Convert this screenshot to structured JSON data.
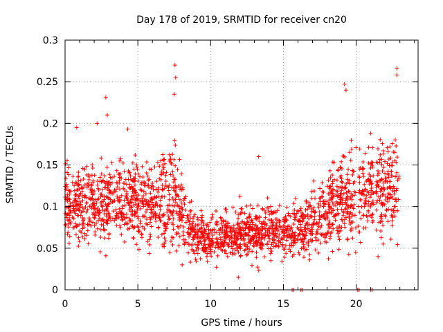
{
  "chart_data": {
    "type": "scatter",
    "title": "Day 178 of 2019, SRMTID for receiver cn20",
    "xlabel": "GPS time / hours",
    "ylabel": "SRMTID / TECUs",
    "xlim": [
      0,
      24.25
    ],
    "ylim": [
      0,
      0.3
    ],
    "x_ticks": [
      0,
      5,
      10,
      15,
      20
    ],
    "y_ticks": [
      0,
      0.05,
      0.1,
      0.15,
      0.2,
      0.25,
      0.3
    ],
    "x_tick_labels": [
      "0",
      "5",
      "10",
      "15",
      "20"
    ],
    "y_tick_labels": [
      "0",
      "0.05",
      "0.1",
      "0.15",
      "0.2",
      "0.25",
      "0.3"
    ],
    "grid": true,
    "marker": "plus",
    "color": "#ff0000",
    "trend": {
      "description": "approximate mean level by hour",
      "x": [
        0,
        2,
        4,
        6,
        7.5,
        8.5,
        9.5,
        12,
        14,
        15.5,
        17,
        18.5,
        19.5,
        20.5,
        22,
        22.9
      ],
      "mean": [
        0.105,
        0.1,
        0.105,
        0.1,
        0.115,
        0.075,
        0.06,
        0.07,
        0.07,
        0.07,
        0.08,
        0.1,
        0.11,
        0.12,
        0.12,
        0.125
      ],
      "spread": [
        0.028,
        0.03,
        0.03,
        0.032,
        0.045,
        0.025,
        0.018,
        0.02,
        0.022,
        0.02,
        0.025,
        0.033,
        0.04,
        0.035,
        0.035,
        0.04
      ]
    },
    "spikes": [
      {
        "x": 7.55,
        "y": 0.27
      },
      {
        "x": 7.6,
        "y": 0.255
      },
      {
        "x": 7.5,
        "y": 0.235
      },
      {
        "x": 19.2,
        "y": 0.247
      },
      {
        "x": 19.3,
        "y": 0.24
      },
      {
        "x": 22.8,
        "y": 0.266
      },
      {
        "x": 22.8,
        "y": 0.258
      },
      {
        "x": 2.8,
        "y": 0.231
      },
      {
        "x": 2.9,
        "y": 0.21
      },
      {
        "x": 2.2,
        "y": 0.2
      },
      {
        "x": 4.3,
        "y": 0.193
      },
      {
        "x": 0.8,
        "y": 0.195
      },
      {
        "x": 13.3,
        "y": 0.16
      },
      {
        "x": 11.9,
        "y": 0.015
      },
      {
        "x": 21.0,
        "y": 0.188
      },
      {
        "x": 21.5,
        "y": 0.04
      }
    ],
    "zero_points": [
      15.6,
      15.7,
      16.2,
      16.3,
      20.1,
      20.2,
      21.0,
      21.1
    ],
    "gaps": [
      [
        20.0,
        20.15
      ],
      [
        21.2,
        21.35
      ]
    ],
    "x_end": 22.95
  }
}
